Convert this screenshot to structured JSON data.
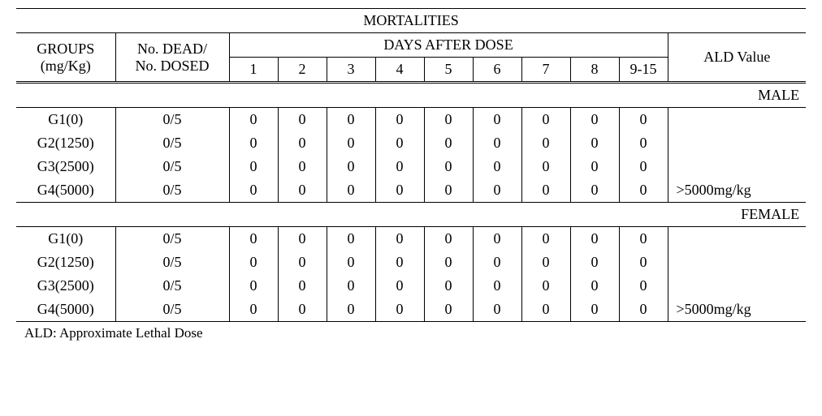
{
  "table": {
    "title": "MORTALITIES",
    "headers": {
      "groups_line1": "GROUPS",
      "groups_line2": "(mg/Kg)",
      "dead_line1": "No. DEAD/",
      "dead_line2": "No. DOSED",
      "days_after_dose": "DAYS AFTER DOSE",
      "ald_value": "ALD Value",
      "day_labels": [
        "1",
        "2",
        "3",
        "4",
        "5",
        "6",
        "7",
        "8",
        "9-15"
      ]
    },
    "sections": [
      {
        "label": "MALE",
        "rows": [
          {
            "group": "G1(0)",
            "dead": "0/5",
            "days": [
              "0",
              "0",
              "0",
              "0",
              "0",
              "0",
              "0",
              "0",
              "0"
            ],
            "ald": ""
          },
          {
            "group": "G2(1250)",
            "dead": "0/5",
            "days": [
              "0",
              "0",
              "0",
              "0",
              "0",
              "0",
              "0",
              "0",
              "0"
            ],
            "ald": ""
          },
          {
            "group": "G3(2500)",
            "dead": "0/5",
            "days": [
              "0",
              "0",
              "0",
              "0",
              "0",
              "0",
              "0",
              "0",
              "0"
            ],
            "ald": ""
          },
          {
            "group": "G4(5000)",
            "dead": "0/5",
            "days": [
              "0",
              "0",
              "0",
              "0",
              "0",
              "0",
              "0",
              "0",
              "0"
            ],
            "ald": ">5000mg/kg"
          }
        ]
      },
      {
        "label": "FEMALE",
        "rows": [
          {
            "group": "G1(0)",
            "dead": "0/5",
            "days": [
              "0",
              "0",
              "0",
              "0",
              "0",
              "0",
              "0",
              "0",
              "0"
            ],
            "ald": ""
          },
          {
            "group": "G2(1250)",
            "dead": "0/5",
            "days": [
              "0",
              "0",
              "0",
              "0",
              "0",
              "0",
              "0",
              "0",
              "0"
            ],
            "ald": ""
          },
          {
            "group": "G3(2500)",
            "dead": "0/5",
            "days": [
              "0",
              "0",
              "0",
              "0",
              "0",
              "0",
              "0",
              "0",
              "0"
            ],
            "ald": ""
          },
          {
            "group": "G4(5000)",
            "dead": "0/5",
            "days": [
              "0",
              "0",
              "0",
              "0",
              "0",
              "0",
              "0",
              "0",
              "0"
            ],
            "ald": ">5000mg/kg"
          }
        ]
      }
    ],
    "footnote": "ALD: Approximate Lethal Dose",
    "colors": {
      "background": "#ffffff",
      "text": "#000000",
      "rule": "#000000"
    },
    "font": {
      "family": "Times New Roman",
      "size_pt": 13
    }
  }
}
